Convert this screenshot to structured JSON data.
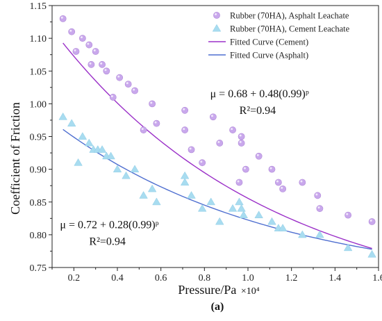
{
  "chart_data": {
    "type": "scatter",
    "xlabel": "Pressure/Pa",
    "xlabel_suffix": "×10⁴",
    "ylabel": "Coefficient of Friction",
    "xlim": [
      0.1,
      1.6
    ],
    "ylim": [
      0.75,
      1.15
    ],
    "xticks": [
      {
        "value": 0.2,
        "label": "0.2"
      },
      {
        "value": 0.4,
        "label": "0.4"
      },
      {
        "value": 0.6,
        "label": "0.6"
      },
      {
        "value": 0.8,
        "label": "0.8"
      },
      {
        "value": 1.0,
        "label": "1.0"
      },
      {
        "value": 1.2,
        "label": "1.2"
      },
      {
        "value": 1.4,
        "label": "1.4"
      },
      {
        "value": 1.6,
        "label": "1.6"
      }
    ],
    "yticks": [
      {
        "value": 0.75,
        "label": "0.75"
      },
      {
        "value": 0.8,
        "label": "0.80"
      },
      {
        "value": 0.85,
        "label": "0.85"
      },
      {
        "value": 0.9,
        "label": "0.90"
      },
      {
        "value": 0.95,
        "label": "0.95"
      },
      {
        "value": 1.0,
        "label": "1.00"
      },
      {
        "value": 1.05,
        "label": "1.05"
      },
      {
        "value": 1.1,
        "label": "1.10"
      },
      {
        "value": 1.15,
        "label": "1.15"
      }
    ],
    "grid": false,
    "legend_position": "top-right",
    "series": [
      {
        "name": "Rubber (70HA), Asphalt Leachate",
        "kind": "scatter",
        "marker": "circle",
        "color": "#c9a8ec",
        "points": [
          [
            0.15,
            1.13
          ],
          [
            0.19,
            1.11
          ],
          [
            0.21,
            1.08
          ],
          [
            0.24,
            1.1
          ],
          [
            0.27,
            1.09
          ],
          [
            0.28,
            1.06
          ],
          [
            0.3,
            1.08
          ],
          [
            0.33,
            1.06
          ],
          [
            0.35,
            1.05
          ],
          [
            0.38,
            1.01
          ],
          [
            0.41,
            1.04
          ],
          [
            0.45,
            1.03
          ],
          [
            0.48,
            1.02
          ],
          [
            0.52,
            0.96
          ],
          [
            0.56,
            1.0
          ],
          [
            0.58,
            0.97
          ],
          [
            0.71,
            0.99
          ],
          [
            0.71,
            0.96
          ],
          [
            0.74,
            0.93
          ],
          [
            0.79,
            0.91
          ],
          [
            0.84,
            0.98
          ],
          [
            0.87,
            0.94
          ],
          [
            0.93,
            0.96
          ],
          [
            0.97,
            0.95
          ],
          [
            0.97,
            0.94
          ],
          [
            0.99,
            0.9
          ],
          [
            0.96,
            0.88
          ],
          [
            1.05,
            0.92
          ],
          [
            1.11,
            0.9
          ],
          [
            1.14,
            0.88
          ],
          [
            1.16,
            0.87
          ],
          [
            1.25,
            0.88
          ],
          [
            1.32,
            0.86
          ],
          [
            1.33,
            0.84
          ],
          [
            1.46,
            0.83
          ],
          [
            1.57,
            0.82
          ]
        ]
      },
      {
        "name": "Rubber (70HA), Cement Leachate",
        "kind": "scatter",
        "marker": "triangle",
        "color": "#a8dcf0",
        "points": [
          [
            0.15,
            0.98
          ],
          [
            0.19,
            0.97
          ],
          [
            0.22,
            0.91
          ],
          [
            0.24,
            0.95
          ],
          [
            0.27,
            0.94
          ],
          [
            0.29,
            0.93
          ],
          [
            0.31,
            0.93
          ],
          [
            0.33,
            0.93
          ],
          [
            0.35,
            0.92
          ],
          [
            0.37,
            0.92
          ],
          [
            0.4,
            0.9
          ],
          [
            0.44,
            0.89
          ],
          [
            0.48,
            0.9
          ],
          [
            0.52,
            0.86
          ],
          [
            0.56,
            0.87
          ],
          [
            0.58,
            0.85
          ],
          [
            0.71,
            0.88
          ],
          [
            0.71,
            0.89
          ],
          [
            0.74,
            0.86
          ],
          [
            0.79,
            0.84
          ],
          [
            0.83,
            0.85
          ],
          [
            0.87,
            0.82
          ],
          [
            0.93,
            0.84
          ],
          [
            0.96,
            0.85
          ],
          [
            0.97,
            0.84
          ],
          [
            0.98,
            0.83
          ],
          [
            1.05,
            0.83
          ],
          [
            1.11,
            0.82
          ],
          [
            1.14,
            0.81
          ],
          [
            1.16,
            0.81
          ],
          [
            1.25,
            0.8
          ],
          [
            1.33,
            0.8
          ],
          [
            1.46,
            0.78
          ],
          [
            1.57,
            0.77
          ]
        ]
      },
      {
        "name": "Fitted Curve (Cement)",
        "kind": "line",
        "color": "#9b30c8",
        "model": {
          "a": 0.68,
          "b": 0.48,
          "base": 0.99,
          "x_scale": 100
        },
        "x_range": [
          0.15,
          1.57
        ]
      },
      {
        "name": "Fitted Curve (Asphalt)",
        "kind": "line",
        "color": "#4f6fd0",
        "model": {
          "a": 0.72,
          "b": 0.28,
          "base": 0.99,
          "x_scale": 100
        },
        "x_range": [
          0.15,
          1.57
        ]
      }
    ],
    "annotations": [
      {
        "id": "eq1",
        "text": "μ = 0.68 + 0.48(0.99)ᵖ",
        "r2": "R²=0.94",
        "at": [
          0.82,
          1.01
        ]
      },
      {
        "id": "eq2",
        "text": "μ = 0.72 + 0.28(0.99)ᵖ",
        "r2": "R²=0.94",
        "at": [
          0.13,
          0.81
        ]
      }
    ],
    "panel_label": "(a)"
  }
}
